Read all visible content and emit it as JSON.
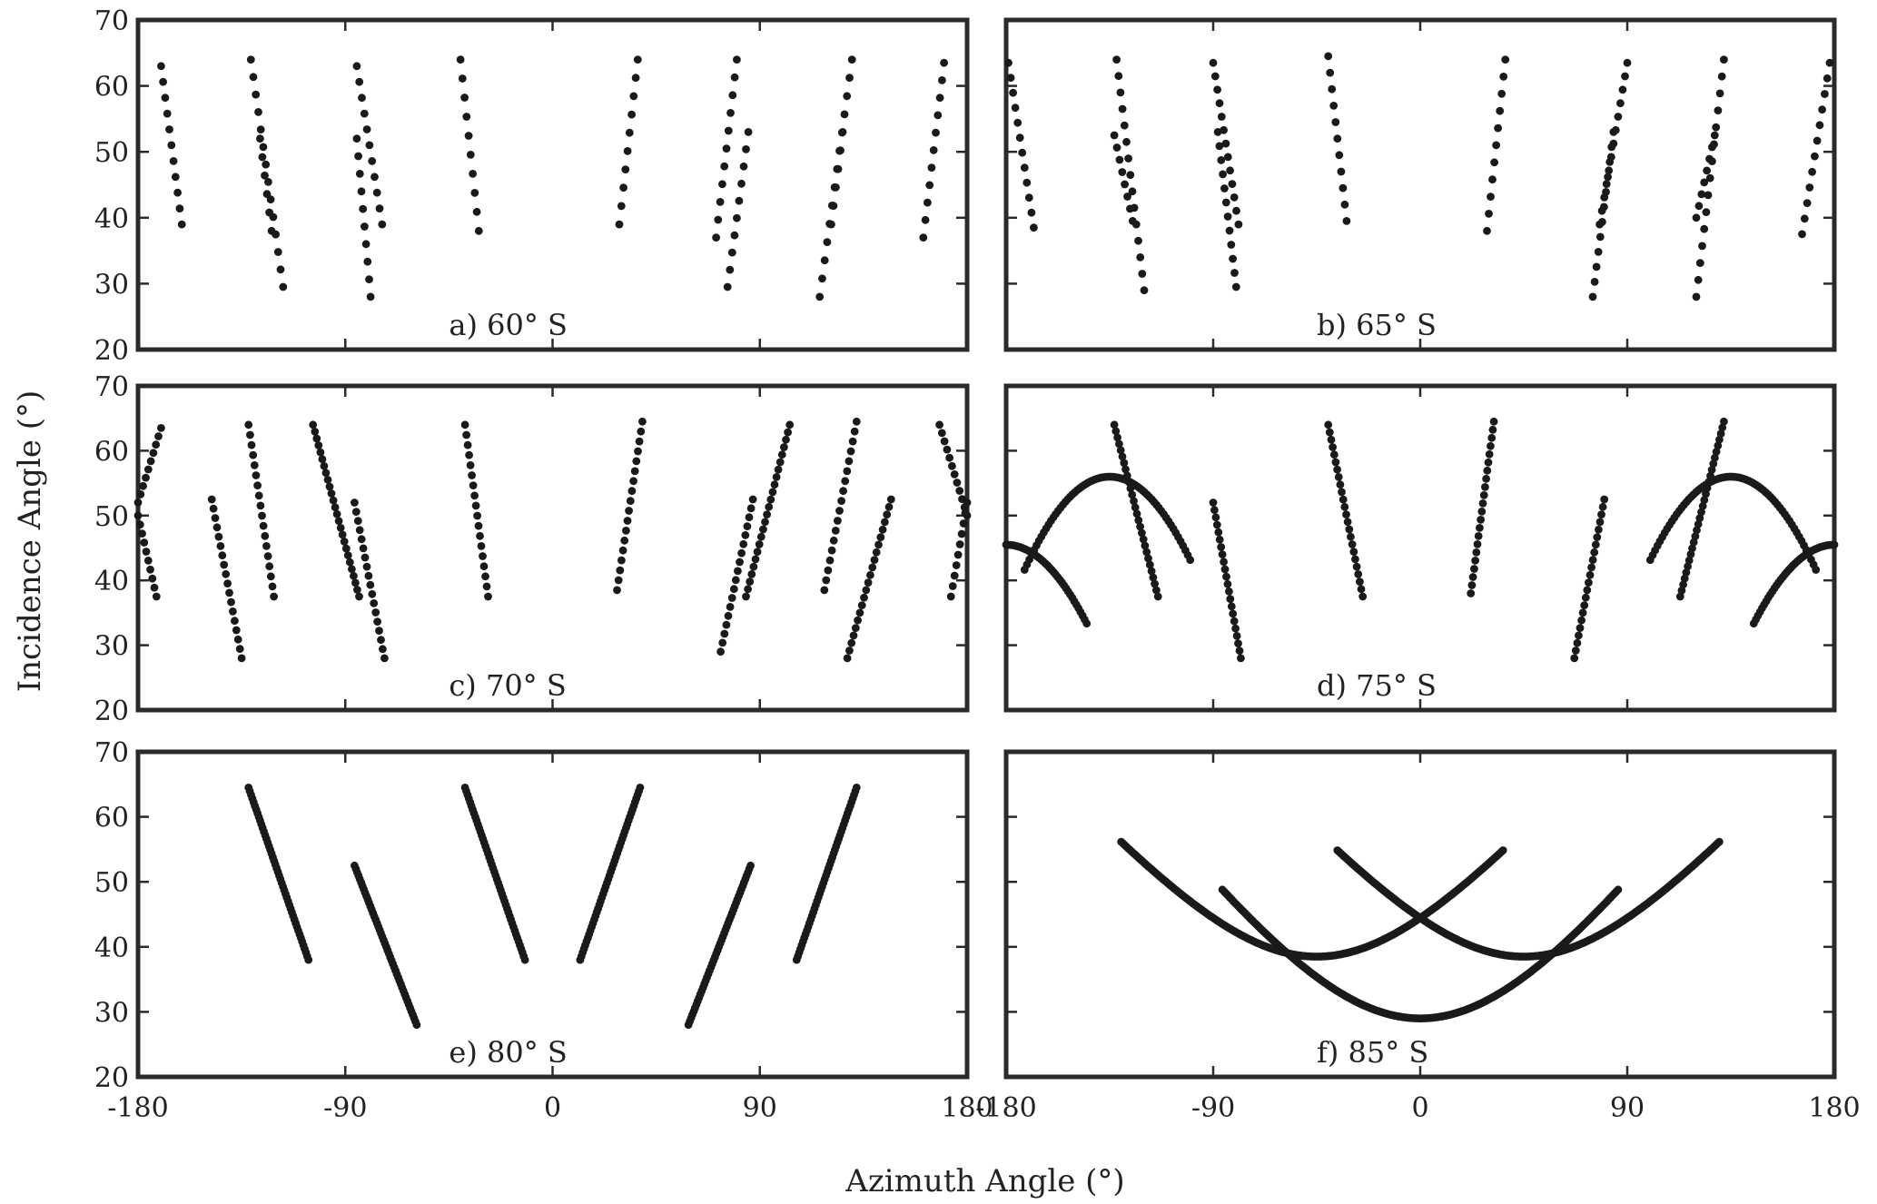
{
  "chart_data": {
    "type": "scatter",
    "xlabel": "Azimuth Angle (°)",
    "ylabel": "Incidence Angle (°)",
    "xlim": [
      -180,
      180
    ],
    "ylim": [
      20,
      70
    ],
    "xticks": [
      -180,
      -90,
      0,
      90,
      180
    ],
    "yticks": [
      20,
      30,
      40,
      50,
      60,
      70
    ],
    "grid": false,
    "marker_color": "#1a1a1a",
    "panels": [
      {
        "id": "a",
        "label": "a) 60° S",
        "segments": [
          {
            "from": [
              -170,
              63
            ],
            "to": [
              -161,
              39
            ],
            "n": 11
          },
          {
            "from": [
              -131,
              64
            ],
            "to": [
              -117,
              29.5
            ],
            "n": 14
          },
          {
            "from": [
              -127,
              52
            ],
            "to": [
              -122,
              38
            ],
            "n": 6
          },
          {
            "from": [
              -85,
              63
            ],
            "to": [
              -74,
              39
            ],
            "n": 11
          },
          {
            "from": [
              -85,
              52
            ],
            "to": [
              -79,
              28
            ],
            "n": 10
          },
          {
            "from": [
              -40,
              64
            ],
            "to": [
              -32,
              38
            ],
            "n": 10
          },
          {
            "from": [
              29,
              39
            ],
            "to": [
              37,
              64
            ],
            "n": 10
          },
          {
            "from": [
              71,
              37
            ],
            "to": [
              80,
              64
            ],
            "n": 11
          },
          {
            "from": [
              76,
              29.5
            ],
            "to": [
              85,
              53
            ],
            "n": 10
          },
          {
            "from": [
              116,
              28
            ],
            "to": [
              130,
              64
            ],
            "n": 14
          },
          {
            "from": [
              121,
              39
            ],
            "to": [
              126,
              53
            ],
            "n": 6
          },
          {
            "from": [
              161,
              37
            ],
            "to": [
              170,
              63.5
            ],
            "n": 11
          }
        ]
      },
      {
        "id": "b",
        "label": "b) 65° S",
        "segments": [
          {
            "from": [
              -179,
              63.5
            ],
            "to": [
              -168,
              38.5
            ],
            "n": 12
          },
          {
            "from": [
              -132,
              64
            ],
            "to": [
              -120,
              29
            ],
            "n": 15
          },
          {
            "from": [
              -133,
              52.5
            ],
            "to": [
              -125,
              39.5
            ],
            "n": 8
          },
          {
            "from": [
              -90,
              63.5
            ],
            "to": [
              -79,
              39
            ],
            "n": 13
          },
          {
            "from": [
              -88,
              53
            ],
            "to": [
              -80,
              29.5
            ],
            "n": 12
          },
          {
            "from": [
              -40,
              64.5
            ],
            "to": [
              -32,
              39.5
            ],
            "n": 11
          },
          {
            "from": [
              29,
              38
            ],
            "to": [
              37,
              64
            ],
            "n": 11
          },
          {
            "from": [
              75,
              28
            ],
            "to": [
              84,
              53
            ],
            "n": 12
          },
          {
            "from": [
              78,
              39
            ],
            "to": [
              90,
              63.5
            ],
            "n": 13
          },
          {
            "from": [
              120,
              28
            ],
            "to": [
              132,
              64
            ],
            "n": 15
          },
          {
            "from": [
              120,
              40
            ],
            "to": [
              128,
              52.5
            ],
            "n": 8
          },
          {
            "from": [
              166,
              37.5
            ],
            "to": [
              178,
              63.5
            ],
            "n": 12
          }
        ]
      },
      {
        "id": "c",
        "label": "c) 70° S",
        "segments": [
          {
            "from": [
              -170,
              63.5
            ],
            "to": [
              -180,
              52
            ],
            "n": 10
          },
          {
            "from": [
              -180,
              50
            ],
            "to": [
              -172,
              37.5
            ],
            "n": 10
          },
          {
            "from": [
              -148,
              52.5
            ],
            "to": [
              -135,
              28
            ],
            "n": 18
          },
          {
            "from": [
              -132,
              64
            ],
            "to": [
              -121,
              37.5
            ],
            "n": 18
          },
          {
            "from": [
              -104,
              64
            ],
            "to": [
              -84,
              37.5
            ],
            "n": 26
          },
          {
            "from": [
              -86,
              52
            ],
            "to": [
              -73,
              28
            ],
            "n": 18
          },
          {
            "from": [
              -38,
              64
            ],
            "to": [
              -28,
              37.5
            ],
            "n": 18
          },
          {
            "from": [
              28,
              38.5
            ],
            "to": [
              39,
              64.5
            ],
            "n": 18
          },
          {
            "from": [
              73,
              29
            ],
            "to": [
              87,
              52.5
            ],
            "n": 18
          },
          {
            "from": [
              84,
              37.5
            ],
            "to": [
              103,
              64
            ],
            "n": 24
          },
          {
            "from": [
              118,
              38.5
            ],
            "to": [
              132,
              64.5
            ],
            "n": 18
          },
          {
            "from": [
              128,
              28
            ],
            "to": [
              147,
              52.5
            ],
            "n": 22
          },
          {
            "from": [
              168,
              64
            ],
            "to": [
              180,
              50
            ],
            "n": 12
          },
          {
            "from": [
              180,
              52
            ],
            "to": [
              173,
              37.5
            ],
            "n": 10
          }
        ]
      },
      {
        "id": "d",
        "label": "d) 75° S",
        "segments": [
          {
            "from": [
              -133,
              64
            ],
            "to": [
              -114,
              37.5
            ],
            "n": 28
          },
          {
            "from": [
              -90,
              52
            ],
            "to": [
              -78,
              28
            ],
            "n": 22
          },
          {
            "from": [
              -40,
              64
            ],
            "to": [
              -25,
              37.5
            ],
            "n": 24
          },
          {
            "from": [
              22,
              38
            ],
            "to": [
              32,
              64.5
            ],
            "n": 22
          },
          {
            "from": [
              67,
              28
            ],
            "to": [
              80,
              52.5
            ],
            "n": 22
          },
          {
            "from": [
              113,
              37.5
            ],
            "to": [
              132,
              64.5
            ],
            "n": 30
          }
        ],
        "arcs": [
          {
            "x0": -135,
            "r": 42,
            "peak": 56,
            "drop": 18.5,
            "from": -172,
            "to": -100,
            "n": 70
          },
          {
            "x0": 135,
            "r": 42,
            "peak": 56,
            "drop": 18.5,
            "from": 100,
            "to": 172,
            "n": 70
          },
          {
            "x0": -180,
            "r": 42,
            "peak": 45.5,
            "drop": 17.5,
            "from": -180,
            "to": -145,
            "n": 40
          },
          {
            "x0": 180,
            "r": 42,
            "peak": 45.5,
            "drop": 17.5,
            "from": 145,
            "to": 180,
            "n": 40
          }
        ]
      },
      {
        "id": "e",
        "label": "e) 80° S",
        "segments": [
          {
            "from": [
              -132,
              64.5
            ],
            "to": [
              -106,
              38
            ],
            "n": 48
          },
          {
            "from": [
              -86,
              52.5
            ],
            "to": [
              -59,
              28
            ],
            "n": 48
          },
          {
            "from": [
              -38,
              64.5
            ],
            "to": [
              -12,
              38
            ],
            "n": 48
          },
          {
            "from": [
              12,
              38
            ],
            "to": [
              38,
              64.5
            ],
            "n": 48
          },
          {
            "from": [
              59,
              28
            ],
            "to": [
              86,
              52.5
            ],
            "n": 48
          },
          {
            "from": [
              106,
              38
            ],
            "to": [
              132,
              64.5
            ],
            "n": 48
          }
        ]
      },
      {
        "id": "f",
        "label": "f) 85° S",
        "arcs": [
          {
            "x0": 0,
            "a": 29,
            "b": 35.5,
            "c": 72,
            "from": -86,
            "to": 86,
            "n": 210
          },
          {
            "x0": -45,
            "a": 38.5,
            "b": 26,
            "c": 63,
            "from": -130,
            "to": 36,
            "n": 210
          },
          {
            "x0": 45,
            "a": 38.5,
            "b": 26,
            "c": 63,
            "from": -36,
            "to": 130,
            "n": 210
          }
        ]
      }
    ]
  }
}
